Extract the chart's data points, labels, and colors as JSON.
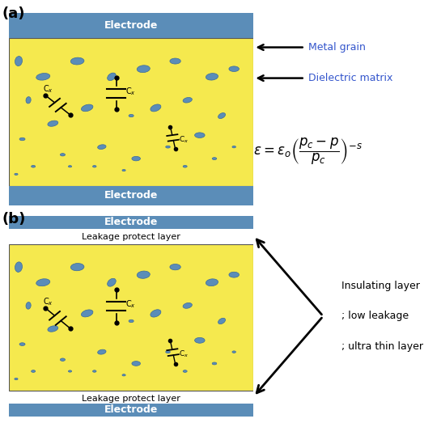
{
  "bg_color": "#FFFFFF",
  "electrode_color": "#5B8DB8",
  "matrix_color": "#F5E94E",
  "grain_color": "#5B8DB8",
  "label_a": "(a)",
  "label_b": "(b)",
  "electrode_label": "Electrode",
  "leakage_label": "Leakage protect layer",
  "metal_grain_label": "Metal grain",
  "dielectric_label": "Dielectric matrix",
  "insulating_line1": "Insulating layer",
  "insulating_line2": "; low leakage",
  "insulating_line3": "; ultra thin layer",
  "grains": [
    [
      0.04,
      0.82,
      0.055,
      0.032,
      85
    ],
    [
      0.08,
      0.72,
      0.038,
      0.022,
      85
    ],
    [
      0.055,
      0.62,
      0.025,
      0.016,
      0
    ],
    [
      0.1,
      0.55,
      0.018,
      0.012,
      0
    ],
    [
      0.14,
      0.78,
      0.062,
      0.038,
      12
    ],
    [
      0.18,
      0.66,
      0.048,
      0.03,
      20
    ],
    [
      0.22,
      0.58,
      0.022,
      0.015,
      0
    ],
    [
      0.28,
      0.82,
      0.06,
      0.04,
      5
    ],
    [
      0.32,
      0.7,
      0.055,
      0.035,
      25
    ],
    [
      0.38,
      0.6,
      0.038,
      0.025,
      15
    ],
    [
      0.42,
      0.78,
      0.048,
      0.032,
      55
    ],
    [
      0.5,
      0.68,
      0.022,
      0.015,
      0
    ],
    [
      0.52,
      0.57,
      0.038,
      0.025,
      0
    ],
    [
      0.55,
      0.8,
      0.058,
      0.04,
      8
    ],
    [
      0.6,
      0.7,
      0.052,
      0.034,
      35
    ],
    [
      0.65,
      0.6,
      0.02,
      0.013,
      0
    ],
    [
      0.68,
      0.82,
      0.048,
      0.032,
      0
    ],
    [
      0.73,
      0.72,
      0.042,
      0.028,
      20
    ],
    [
      0.78,
      0.63,
      0.045,
      0.03,
      0
    ],
    [
      0.83,
      0.78,
      0.055,
      0.038,
      10
    ],
    [
      0.87,
      0.68,
      0.038,
      0.025,
      45
    ],
    [
      0.92,
      0.8,
      0.045,
      0.03,
      0
    ],
    [
      0.25,
      0.55,
      0.015,
      0.01,
      0
    ],
    [
      0.47,
      0.54,
      0.015,
      0.01,
      0
    ],
    [
      0.72,
      0.55,
      0.018,
      0.012,
      0
    ],
    [
      0.84,
      0.57,
      0.02,
      0.013,
      0
    ],
    [
      0.03,
      0.53,
      0.015,
      0.01,
      0
    ],
    [
      0.35,
      0.55,
      0.016,
      0.011,
      0
    ],
    [
      0.92,
      0.6,
      0.016,
      0.011,
      0
    ]
  ]
}
